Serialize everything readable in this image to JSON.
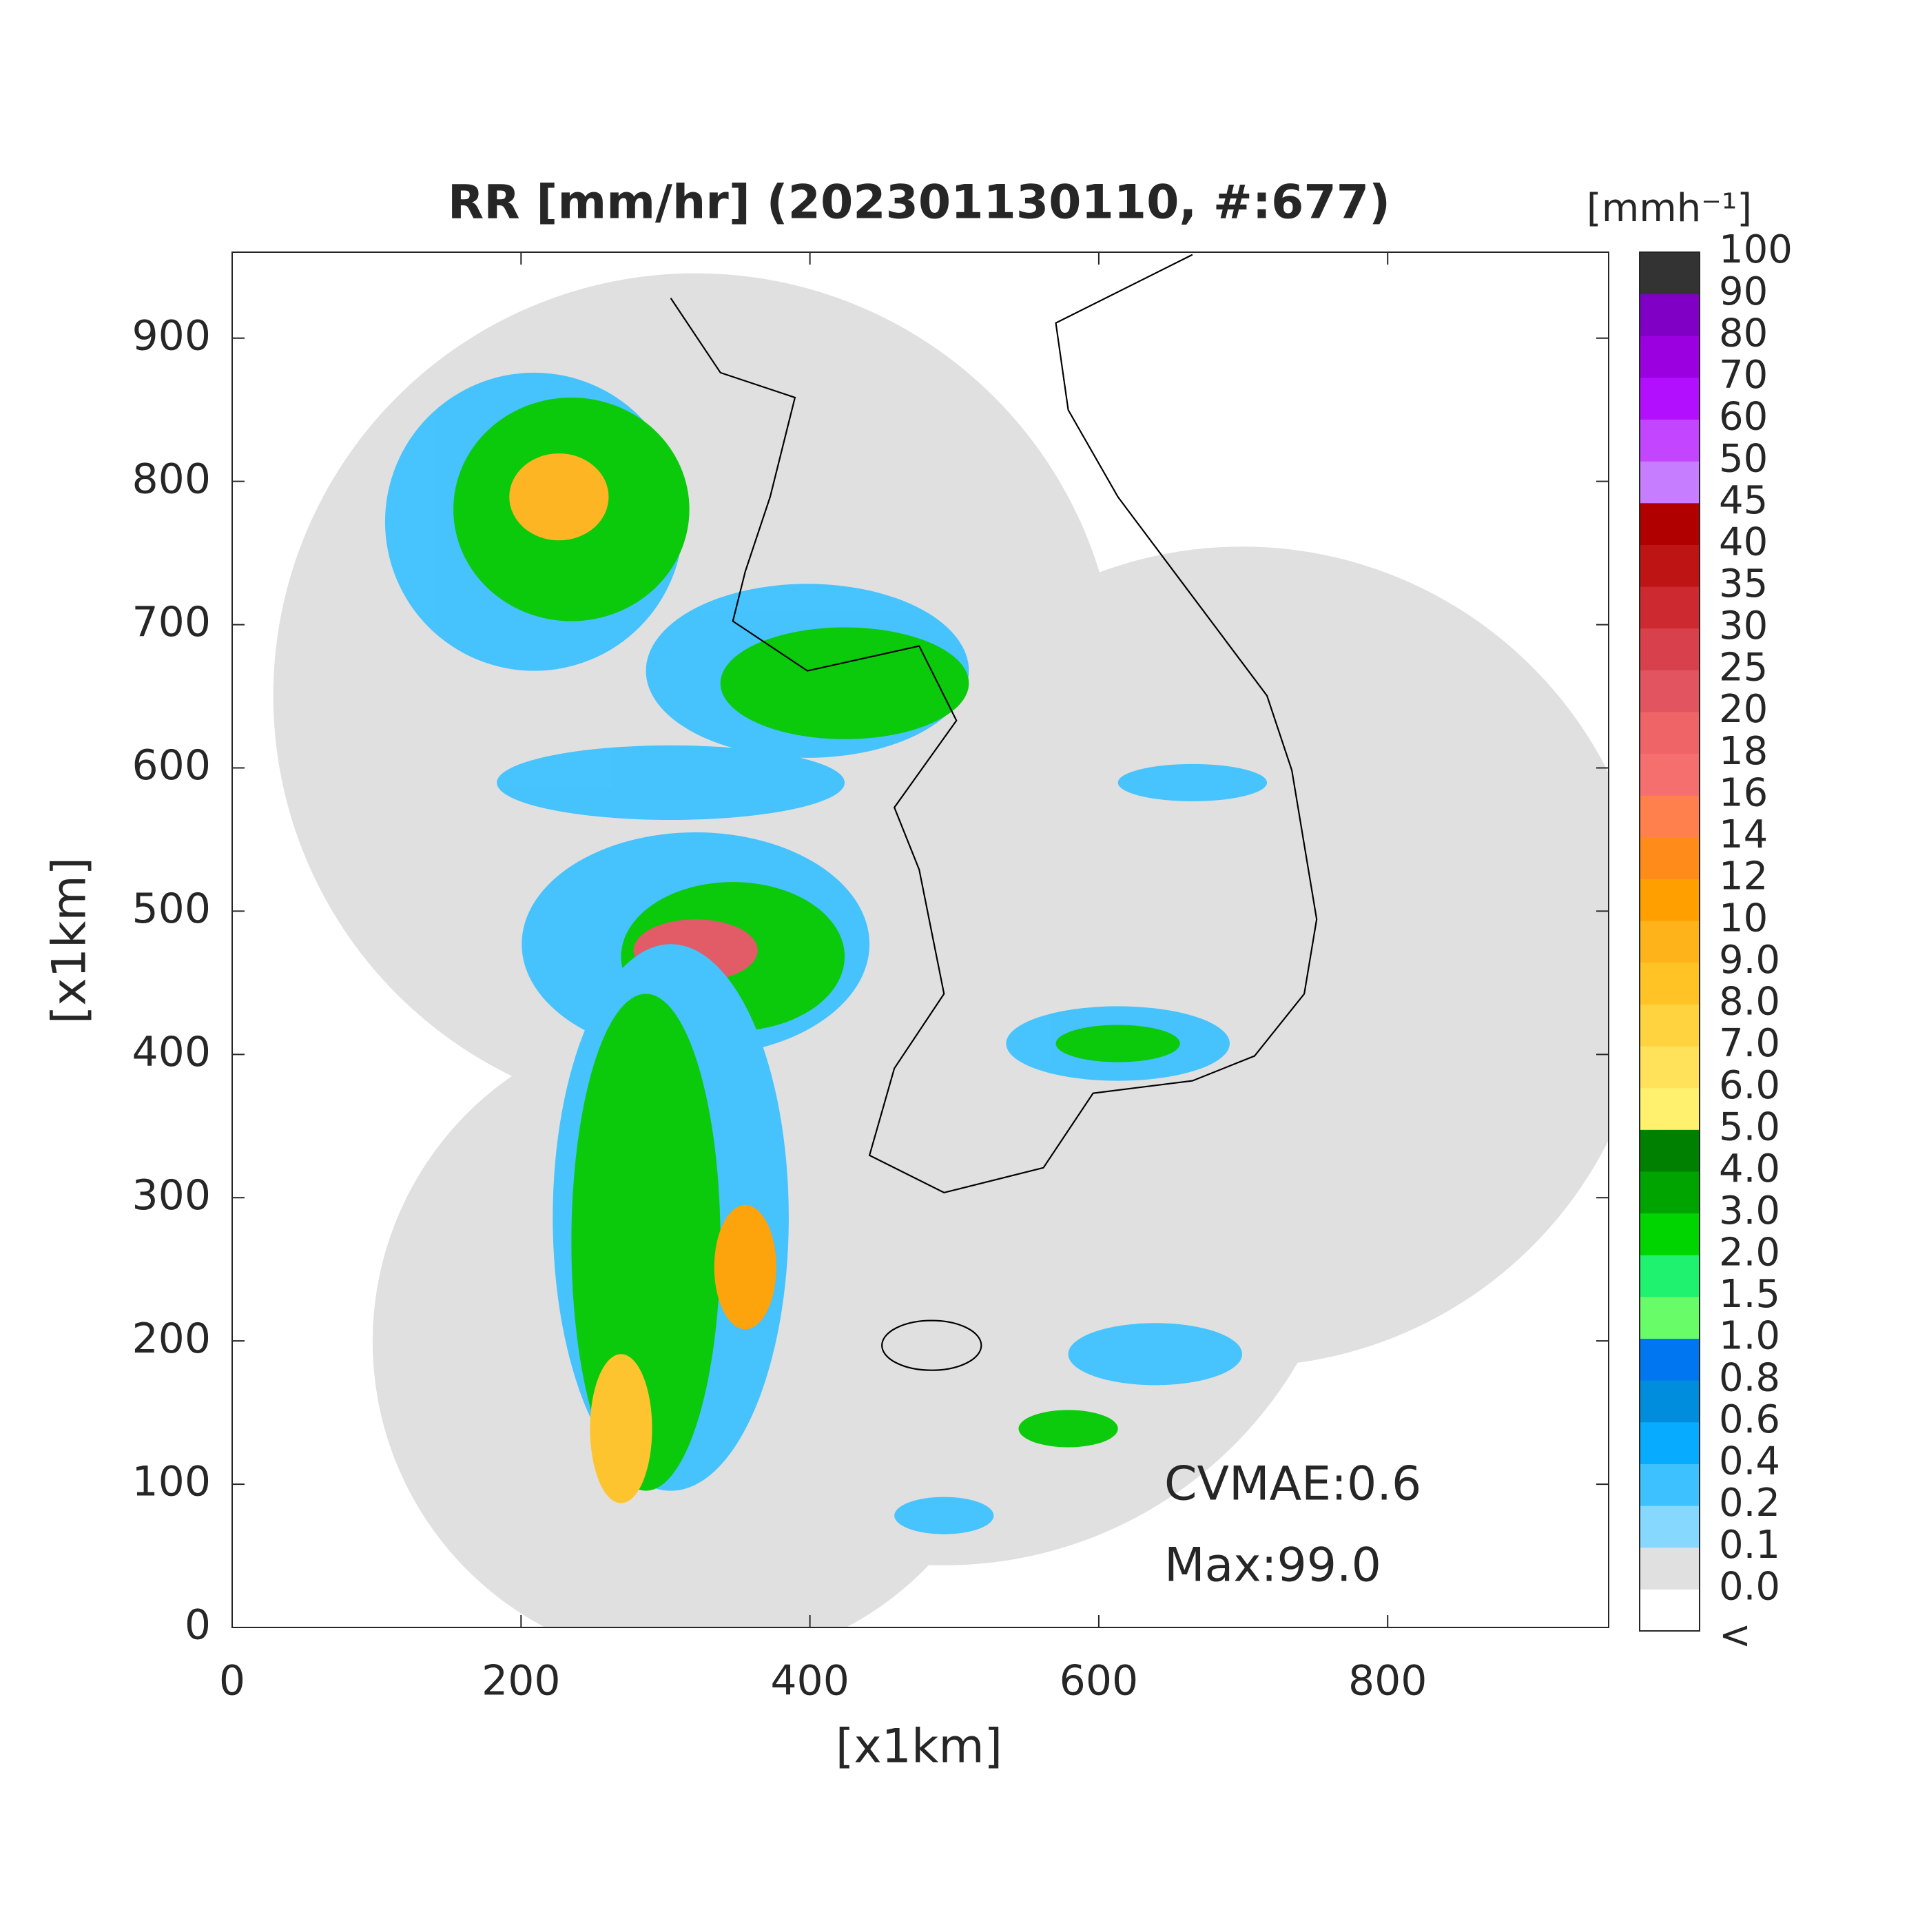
{
  "chart_data": {
    "type": "heatmap",
    "title": "RR [mm/hr] (202301130110, #:677)",
    "x_label": "[x1km]",
    "y_label": "[x1km]",
    "xlim": [
      0,
      953
    ],
    "ylim": [
      0,
      960
    ],
    "xticks": [
      0,
      200,
      400,
      600,
      800
    ],
    "yticks": [
      0,
      100,
      200,
      300,
      400,
      500,
      600,
      700,
      800,
      900
    ],
    "annotations": [
      "CVMAE:0.6",
      "Max:99.0"
    ],
    "colorbar": {
      "label": "[mmh⁻¹]",
      "below_label": "<",
      "levels": [
        {
          "value": 0,
          "label": "0.0"
        },
        0.1,
        0.2,
        0.4,
        0.6,
        0.8,
        {
          "value": 1,
          "label": "1.0"
        },
        1.5,
        {
          "value": 2,
          "label": "2.0"
        },
        {
          "value": 3,
          "label": "3.0"
        },
        {
          "value": 4,
          "label": "4.0"
        },
        {
          "value": 5,
          "label": "5.0"
        },
        {
          "value": 6,
          "label": "6.0"
        },
        {
          "value": 7,
          "label": "7.0"
        },
        {
          "value": 8,
          "label": "8.0"
        },
        {
          "value": 9,
          "label": "9.0"
        },
        10,
        12,
        14,
        16,
        18,
        20,
        25,
        30,
        35,
        40,
        45,
        50,
        60,
        70,
        80,
        90,
        100
      ],
      "colors": [
        "#ffffff",
        "#e0e0e0",
        "#87d8ff",
        "#3ec1ff",
        "#07abff",
        "#008dde",
        "#0077f0",
        "#69fc69",
        "#1ef26e",
        "#00d500",
        "#00a400",
        "#008000",
        "#fff06e",
        "#ffe15a",
        "#ffd240",
        "#ffc326",
        "#ffb31a",
        "#ffa000",
        "#ff8c1a",
        "#ff7f4d",
        "#f66f6f",
        "#ee6467",
        "#e25560",
        "#d8414b",
        "#cc2a30",
        "#be1414",
        "#b00000",
        "#c67dff",
        "#c445ff",
        "#b30fff",
        "#9b00e0",
        "#8000c6",
        "#333333"
      ]
    }
  }
}
